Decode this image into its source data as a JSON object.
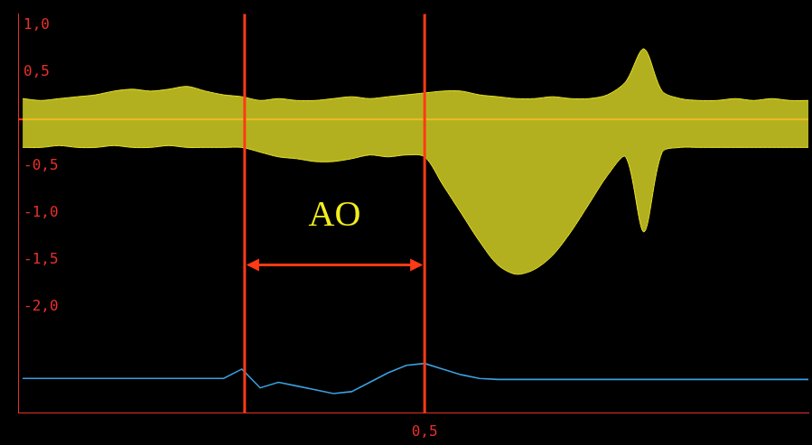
{
  "chart_data": {
    "type": "line",
    "x": [
      0.06,
      0.08,
      0.1,
      0.12,
      0.14,
      0.16,
      0.18,
      0.2,
      0.22,
      0.24,
      0.26,
      0.28,
      0.3,
      0.32,
      0.34,
      0.36,
      0.38,
      0.4,
      0.42,
      0.44,
      0.46,
      0.48,
      0.5,
      0.52,
      0.54,
      0.56,
      0.58,
      0.6,
      0.62,
      0.64,
      0.66,
      0.68,
      0.7,
      0.72,
      0.74,
      0.76,
      0.78,
      0.8,
      0.82,
      0.84,
      0.86,
      0.88,
      0.9,
      0.92
    ],
    "series": [
      {
        "type": "area",
        "color": "#e6e128",
        "values": [
          0.22,
          0.2,
          0.22,
          0.24,
          0.26,
          0.3,
          0.32,
          0.3,
          0.32,
          0.35,
          0.3,
          0.26,
          0.24,
          0.2,
          0.22,
          0.2,
          0.2,
          0.22,
          0.24,
          0.22,
          0.24,
          0.26,
          0.28,
          0.3,
          0.3,
          0.26,
          0.24,
          0.22,
          0.22,
          0.24,
          0.22,
          0.22,
          0.26,
          0.4,
          0.75,
          0.3,
          0.22,
          0.2,
          0.2,
          0.22,
          0.2,
          0.22,
          0.2,
          0.2
        ]
      },
      {
        "type": "area",
        "color": "#e6e128",
        "values": [
          -0.3,
          -0.3,
          -0.28,
          -0.3,
          -0.3,
          -0.28,
          -0.3,
          -0.3,
          -0.28,
          -0.3,
          -0.3,
          -0.3,
          -0.3,
          -0.35,
          -0.4,
          -0.42,
          -0.45,
          -0.45,
          -0.42,
          -0.38,
          -0.4,
          -0.38,
          -0.4,
          -0.7,
          -1.0,
          -1.3,
          -1.55,
          -1.65,
          -1.6,
          -1.45,
          -1.2,
          -0.9,
          -0.6,
          -0.4,
          -1.2,
          -0.35,
          -0.3,
          -0.3,
          -0.3,
          -0.3,
          -0.3,
          -0.3,
          -0.3,
          -0.3
        ]
      },
      {
        "type": "line",
        "color": "#3aa0e0",
        "values": [
          -2.76,
          -2.76,
          -2.76,
          -2.76,
          -2.76,
          -2.76,
          -2.76,
          -2.76,
          -2.76,
          -2.76,
          -2.76,
          -2.76,
          -2.66,
          -2.86,
          -2.8,
          -2.84,
          -2.88,
          -2.92,
          -2.9,
          -2.8,
          -2.7,
          -2.62,
          -2.6,
          -2.66,
          -2.72,
          -2.76,
          -2.77,
          -2.77,
          -2.77,
          -2.77,
          -2.77,
          -2.77,
          -2.77,
          -2.77,
          -2.77,
          -2.77,
          -2.77,
          -2.77,
          -2.77,
          -2.77,
          -2.77,
          -2.77,
          -2.77,
          -2.77
        ]
      }
    ],
    "baseline": 0,
    "xlim": [
      0.055,
      0.92
    ],
    "xticks": [
      {
        "value": 0.5,
        "label": "0,5"
      }
    ],
    "ylim": [
      -3.13,
      1.12
    ],
    "yticks": [
      {
        "value": 1,
        "label": "1,0"
      },
      {
        "value": 0.5,
        "label": "0,5"
      },
      {
        "value": -0.5,
        "label": "-0,5"
      },
      {
        "value": -1,
        "label": "-1,0"
      },
      {
        "value": -1.5,
        "label": "-1,5"
      },
      {
        "value": -2,
        "label": "-2,0"
      }
    ],
    "grid": false,
    "annotations": [
      {
        "label": "AO",
        "x_start": 0.303,
        "x_end": 0.5,
        "label_y": -1.03,
        "arrow_y": -1.55
      }
    ]
  }
}
